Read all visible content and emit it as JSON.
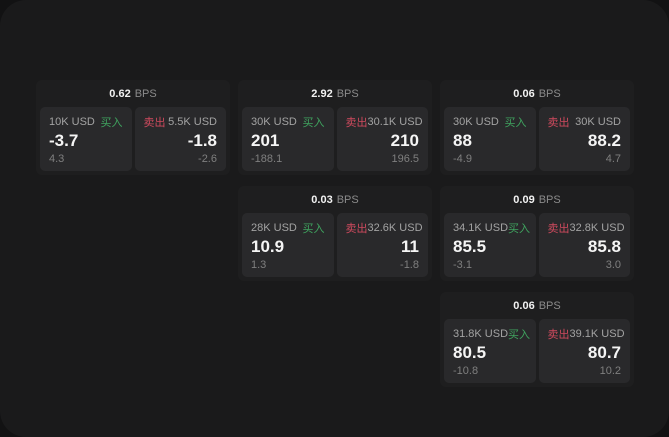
{
  "app": {
    "name": "quote-board"
  },
  "colors": {
    "backdrop": "#121213",
    "surface": "#1a1a1b",
    "card": "#1e1e1f",
    "panel": "#29292b",
    "buy": "#3fa45f",
    "sell": "#cf4a5e"
  },
  "labels": {
    "buy": "买入",
    "sell": "卖出",
    "bps_unit": "BPS"
  },
  "cards": [
    {
      "row": 1,
      "col": 1,
      "bps": "0.62",
      "buy": {
        "size": "10K USD",
        "price": "-3.7",
        "sub": "4.3"
      },
      "sell": {
        "size": "5.5K USD",
        "price": "-1.8",
        "sub": "-2.6"
      }
    },
    {
      "row": 1,
      "col": 2,
      "bps": "2.92",
      "buy": {
        "size": "30K USD",
        "price": "201",
        "sub": "-188.1"
      },
      "sell": {
        "size": "30.1K USD",
        "price": "210",
        "sub": "196.5"
      }
    },
    {
      "row": 1,
      "col": 3,
      "bps": "0.06",
      "buy": {
        "size": "30K USD",
        "price": "88",
        "sub": "-4.9"
      },
      "sell": {
        "size": "30K USD",
        "price": "88.2",
        "sub": "4.7"
      }
    },
    {
      "row": 2,
      "col": 2,
      "bps": "0.03",
      "buy": {
        "size": "28K USD",
        "price": "10.9",
        "sub": "1.3"
      },
      "sell": {
        "size": "32.6K USD",
        "price": "11",
        "sub": "-1.8"
      }
    },
    {
      "row": 2,
      "col": 3,
      "bps": "0.09",
      "buy": {
        "size": "34.1K USD",
        "price": "85.5",
        "sub": "-3.1"
      },
      "sell": {
        "size": "32.8K USD",
        "price": "85.8",
        "sub": "3.0"
      }
    },
    {
      "row": 3,
      "col": 3,
      "bps": "0.06",
      "buy": {
        "size": "31.8K USD",
        "price": "80.5",
        "sub": "-10.8"
      },
      "sell": {
        "size": "39.1K USD",
        "price": "80.7",
        "sub": "10.2"
      }
    }
  ]
}
